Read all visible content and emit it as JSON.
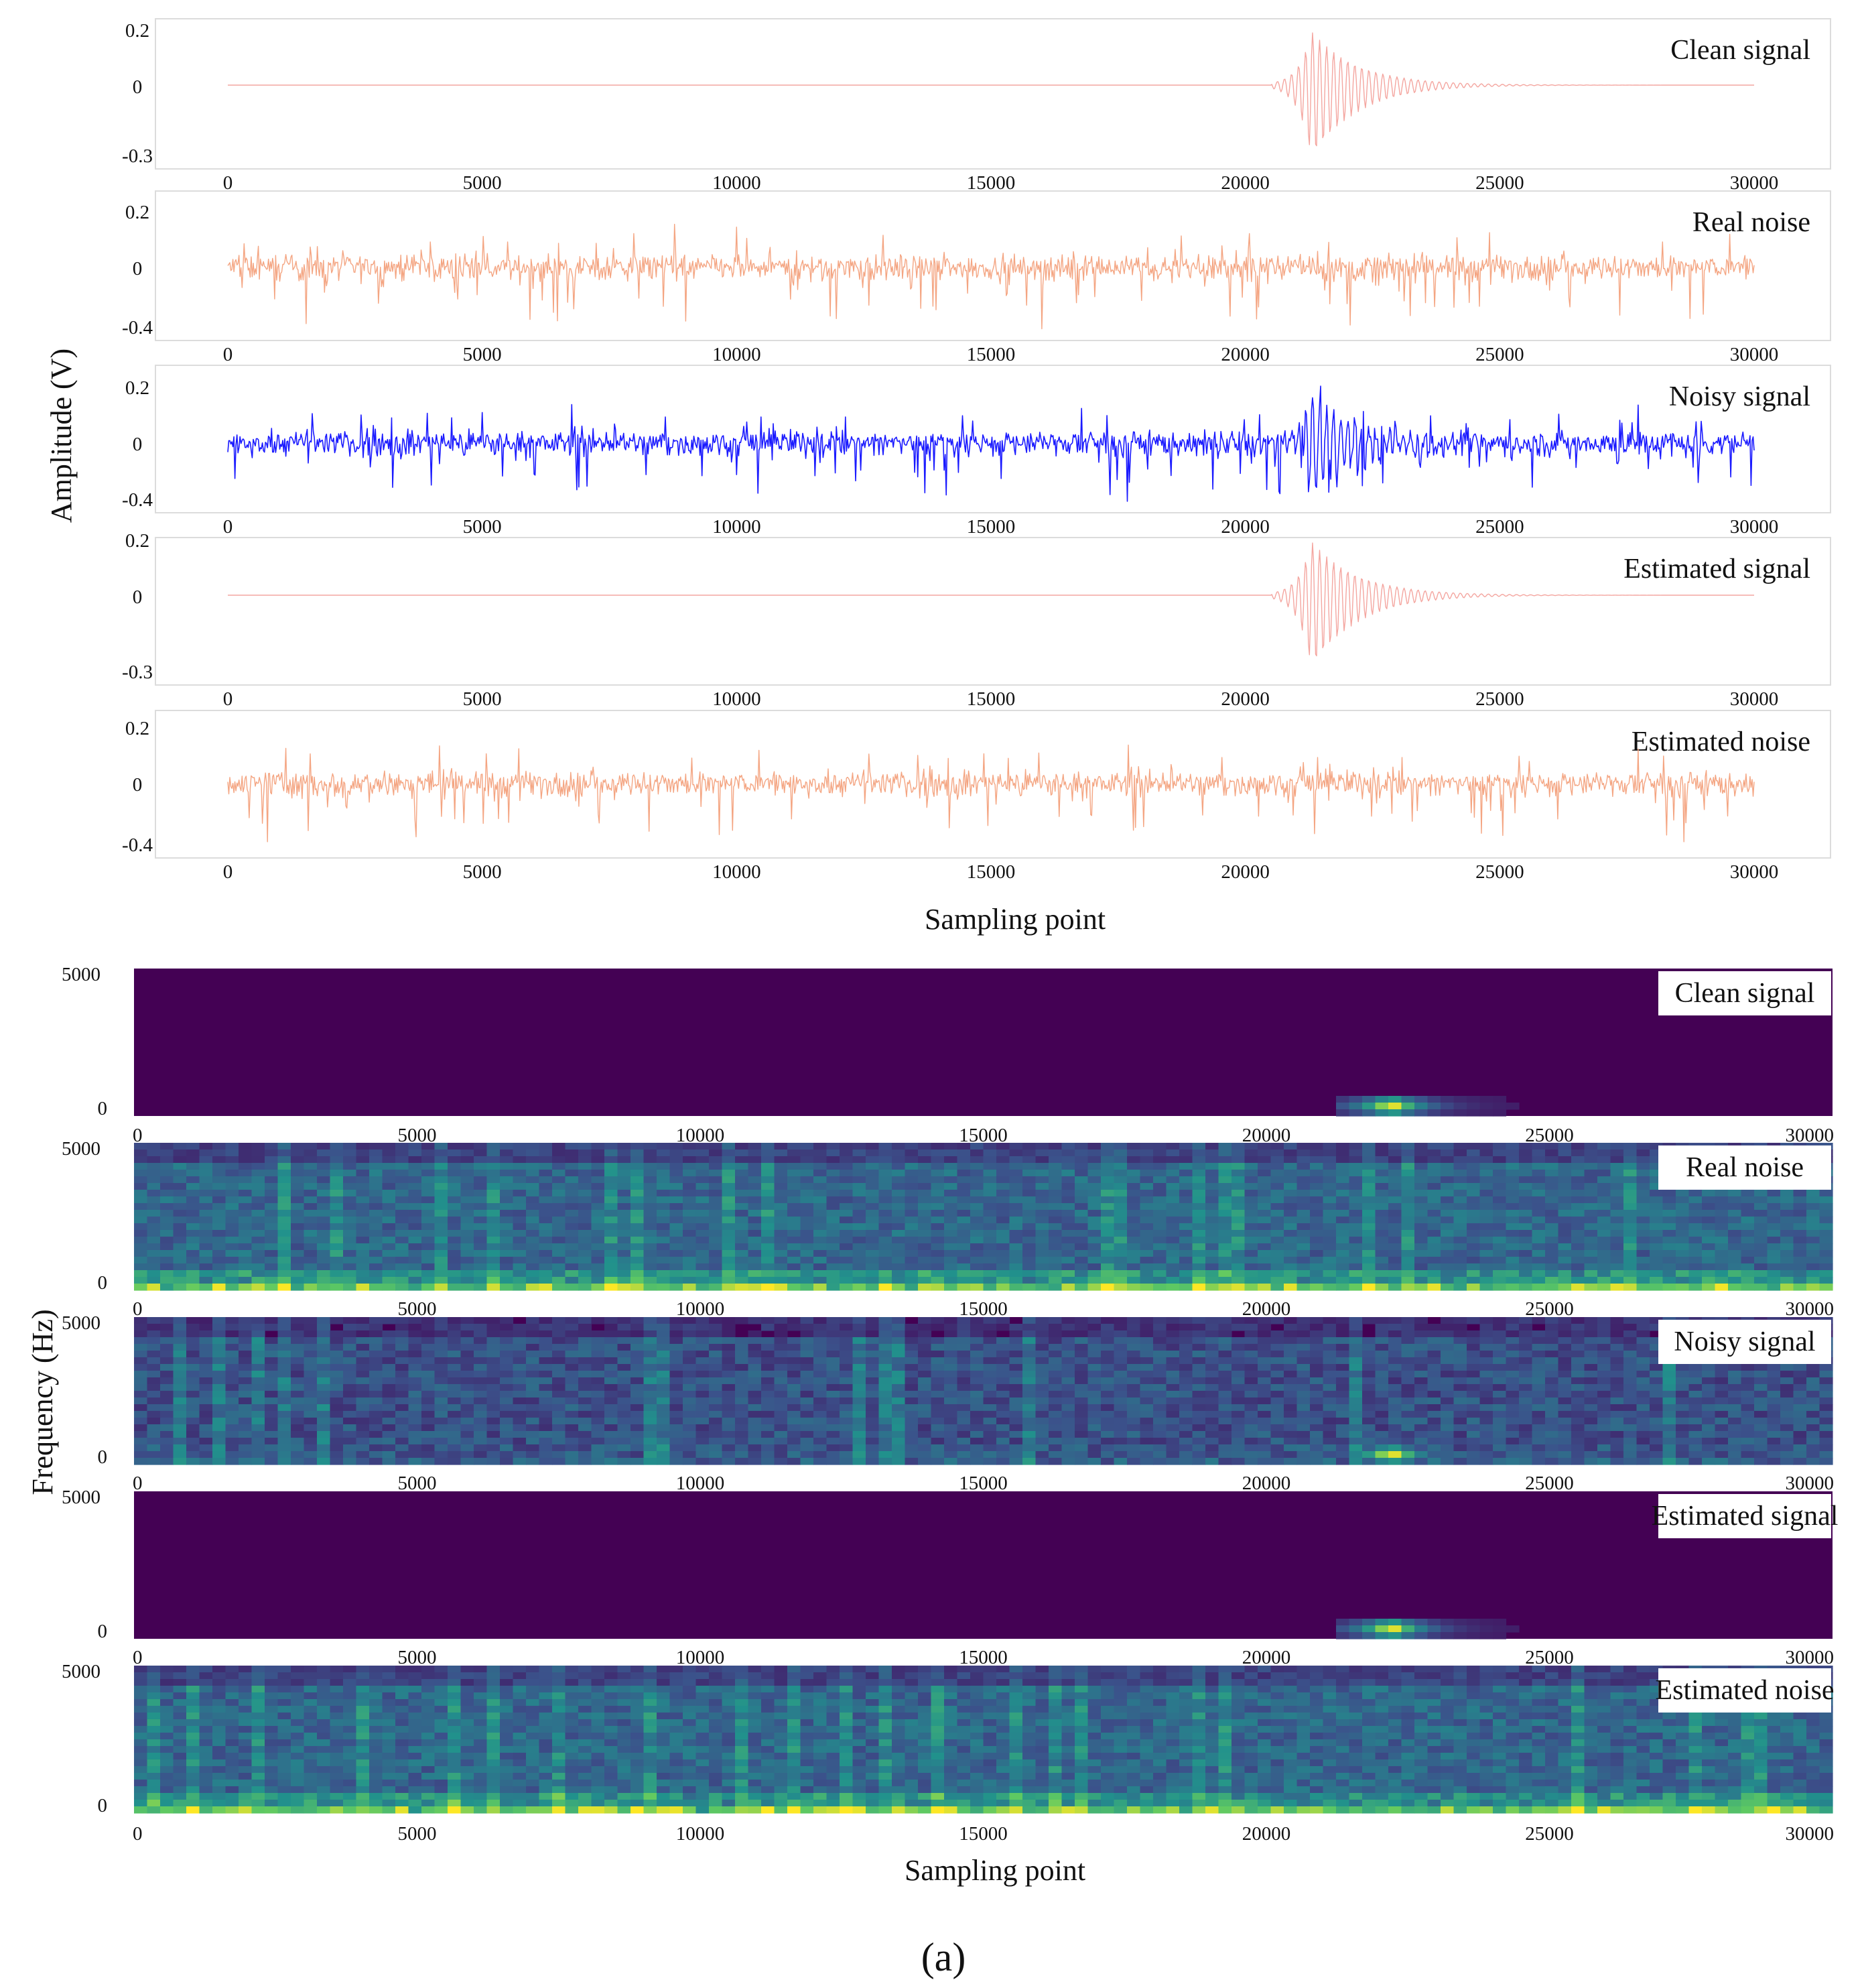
{
  "figure_label": "(a)",
  "waveforms": {
    "ylabel": "Amplitude (V)",
    "xlabel": "Sampling point",
    "x_ticks": [
      "0",
      "5000",
      "10000",
      "15000",
      "20000",
      "25000",
      "30000"
    ],
    "panels": [
      {
        "label": "Clean signal",
        "color": "#f4a6a0",
        "kind": "event",
        "y_ticks": [
          "0.2",
          "0",
          "-0.3"
        ]
      },
      {
        "label": "Real noise",
        "color": "#f4a582",
        "kind": "noise",
        "y_ticks": [
          "0.2",
          "0",
          "-0.4"
        ]
      },
      {
        "label": "Noisy signal",
        "color": "#1a1aff",
        "kind": "noisy",
        "y_ticks": [
          "0.2",
          "0",
          "-0.4"
        ]
      },
      {
        "label": "Estimated signal",
        "color": "#f4a6a0",
        "kind": "event",
        "y_ticks": [
          "0.2",
          "0",
          "-0.3"
        ]
      },
      {
        "label": "Estimated noise",
        "color": "#f4a582",
        "kind": "noise",
        "y_ticks": [
          "0.2",
          "0",
          "-0.4"
        ]
      }
    ]
  },
  "spectrograms": {
    "ylabel": "Frequency (Hz)",
    "xlabel": "Sampling point",
    "x_ticks": [
      "0",
      "5000",
      "10000",
      "15000",
      "20000",
      "25000",
      "30000"
    ],
    "y_ticks": [
      "5000",
      "0"
    ],
    "colors": {
      "background": "#440154",
      "mid": "#31688e",
      "high": "#35b779",
      "peak": "#fde725"
    },
    "panels": [
      {
        "label": "Clean signal",
        "kind": "event"
      },
      {
        "label": "Real noise",
        "kind": "noise"
      },
      {
        "label": "Noisy signal",
        "kind": "noisy"
      },
      {
        "label": "Estimated signal",
        "kind": "event"
      },
      {
        "label": "Estimated noise",
        "kind": "noise"
      }
    ]
  },
  "chart_data": [
    {
      "type": "line",
      "title": "Clean signal",
      "xlim": [
        0,
        30000
      ],
      "ylim": [
        -0.3,
        0.2
      ],
      "xlabel": "Sampling point",
      "ylabel": "Amplitude (V)",
      "event_onset": 21000,
      "event_peak": 21500
    },
    {
      "type": "line",
      "title": "Real noise",
      "xlim": [
        0,
        30000
      ],
      "ylim": [
        -0.4,
        0.2
      ],
      "xlabel": "Sampling point",
      "ylabel": "Amplitude (V)"
    },
    {
      "type": "line",
      "title": "Noisy signal",
      "xlim": [
        0,
        30000
      ],
      "ylim": [
        -0.4,
        0.2
      ],
      "xlabel": "Sampling point",
      "ylabel": "Amplitude (V)",
      "event_onset": 21000
    },
    {
      "type": "line",
      "title": "Estimated signal",
      "xlim": [
        0,
        30000
      ],
      "ylim": [
        -0.3,
        0.2
      ],
      "xlabel": "Sampling point",
      "ylabel": "Amplitude (V)",
      "event_onset": 21000,
      "event_peak": 21500
    },
    {
      "type": "line",
      "title": "Estimated noise",
      "xlim": [
        0,
        30000
      ],
      "ylim": [
        -0.4,
        0.2
      ],
      "xlabel": "Sampling point",
      "ylabel": "Amplitude (V)"
    },
    {
      "type": "heatmap",
      "title": "Clean signal",
      "xlim": [
        0,
        30000
      ],
      "ylim": [
        0,
        5000
      ],
      "xlabel": "Sampling point",
      "ylabel": "Frequency (Hz)"
    },
    {
      "type": "heatmap",
      "title": "Real noise",
      "xlim": [
        0,
        30000
      ],
      "ylim": [
        0,
        5000
      ],
      "xlabel": "Sampling point",
      "ylabel": "Frequency (Hz)"
    },
    {
      "type": "heatmap",
      "title": "Noisy signal",
      "xlim": [
        0,
        30000
      ],
      "ylim": [
        0,
        5000
      ],
      "xlabel": "Sampling point",
      "ylabel": "Frequency (Hz)"
    },
    {
      "type": "heatmap",
      "title": "Estimated signal",
      "xlim": [
        0,
        30000
      ],
      "ylim": [
        0,
        5000
      ],
      "xlabel": "Sampling point",
      "ylabel": "Frequency (Hz)"
    },
    {
      "type": "heatmap",
      "title": "Estimated noise",
      "xlim": [
        0,
        30000
      ],
      "ylim": [
        0,
        5000
      ],
      "xlabel": "Sampling point",
      "ylabel": "Frequency (Hz)"
    }
  ]
}
